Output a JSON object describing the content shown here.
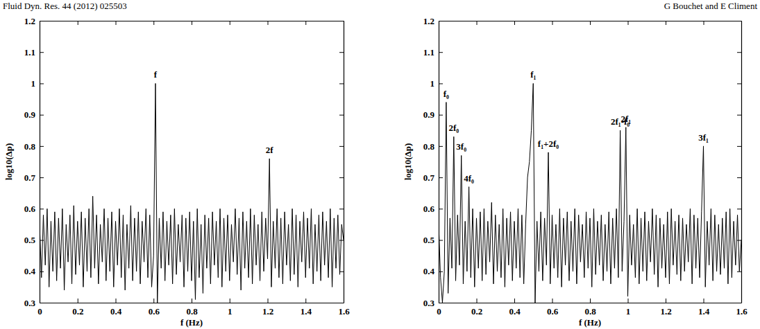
{
  "header": {
    "journal": "Fluid Dyn. Res. 44 (2012) 025503",
    "authors": "G Bouchet and E Climent"
  },
  "chart_data": [
    {
      "type": "line",
      "xlabel": "f (Hz)",
      "ylabel": "log10(Δp)",
      "color": "#000000",
      "xlim": [
        0,
        1.6
      ],
      "ylim": [
        0.3,
        1.2
      ],
      "xticks": [
        0,
        0.2,
        0.4,
        0.6,
        0.8,
        1,
        1.2,
        1.4,
        1.6
      ],
      "yticks": [
        0.3,
        0.4,
        0.5,
        0.6,
        0.7,
        0.8,
        0.9,
        1,
        1.1,
        1.2
      ],
      "x": [
        0,
        0.01,
        0.02,
        0.03,
        0.04,
        0.05,
        0.06,
        0.07,
        0.08,
        0.09,
        0.1,
        0.11,
        0.12,
        0.13,
        0.14,
        0.15,
        0.16,
        0.17,
        0.18,
        0.19,
        0.2,
        0.21,
        0.22,
        0.23,
        0.24,
        0.25,
        0.26,
        0.27,
        0.28,
        0.29,
        0.3,
        0.31,
        0.32,
        0.33,
        0.34,
        0.35,
        0.36,
        0.37,
        0.38,
        0.39,
        0.4,
        0.41,
        0.42,
        0.43,
        0.44,
        0.45,
        0.46,
        0.47,
        0.48,
        0.49,
        0.5,
        0.51,
        0.52,
        0.53,
        0.54,
        0.55,
        0.56,
        0.57,
        0.58,
        0.59,
        0.6,
        0.61,
        0.62,
        0.63,
        0.64,
        0.65,
        0.66,
        0.67,
        0.68,
        0.69,
        0.7,
        0.71,
        0.72,
        0.73,
        0.74,
        0.75,
        0.76,
        0.77,
        0.78,
        0.79,
        0.8,
        0.81,
        0.82,
        0.83,
        0.84,
        0.85,
        0.86,
        0.87,
        0.88,
        0.89,
        0.9,
        0.91,
        0.92,
        0.93,
        0.94,
        0.95,
        0.96,
        0.97,
        0.98,
        0.99,
        1,
        1.01,
        1.02,
        1.03,
        1.04,
        1.05,
        1.06,
        1.07,
        1.08,
        1.09,
        1.1,
        1.11,
        1.12,
        1.13,
        1.14,
        1.15,
        1.16,
        1.17,
        1.18,
        1.19,
        1.2,
        1.21,
        1.22,
        1.23,
        1.24,
        1.25,
        1.26,
        1.27,
        1.28,
        1.29,
        1.3,
        1.31,
        1.32,
        1.33,
        1.34,
        1.35,
        1.36,
        1.37,
        1.38,
        1.39,
        1.4,
        1.41,
        1.42,
        1.43,
        1.44,
        1.45,
        1.46,
        1.47,
        1.48,
        1.49,
        1.5,
        1.51,
        1.52,
        1.53,
        1.54,
        1.55,
        1.56,
        1.57,
        1.58,
        1.59,
        1.6
      ],
      "values": [
        0.55,
        0.38,
        0.58,
        0.42,
        0.6,
        0.35,
        0.56,
        0.4,
        0.59,
        0.37,
        0.57,
        0.41,
        0.6,
        0.34,
        0.55,
        0.43,
        0.58,
        0.36,
        0.61,
        0.39,
        0.56,
        0.42,
        0.59,
        0.35,
        0.57,
        0.4,
        0.6,
        0.38,
        0.64,
        0.41,
        0.58,
        0.36,
        0.55,
        0.43,
        0.6,
        0.37,
        0.57,
        0.4,
        0.59,
        0.35,
        0.56,
        0.42,
        0.6,
        0.38,
        0.58,
        0.34,
        0.55,
        0.41,
        0.61,
        0.37,
        0.57,
        0.4,
        0.59,
        0.36,
        0.56,
        0.43,
        0.6,
        0.38,
        0.58,
        0.35,
        0.45,
        1.0,
        0.3,
        0.57,
        0.41,
        0.59,
        0.37,
        0.56,
        0.42,
        0.58,
        0.36,
        0.6,
        0.39,
        0.55,
        0.43,
        0.58,
        0.35,
        0.57,
        0.4,
        0.59,
        0.37,
        0.56,
        0.31,
        0.6,
        0.38,
        0.55,
        0.33,
        0.58,
        0.41,
        0.57,
        0.36,
        0.59,
        0.42,
        0.56,
        0.38,
        0.6,
        0.35,
        0.57,
        0.4,
        0.58,
        0.37,
        0.55,
        0.43,
        0.6,
        0.39,
        0.57,
        0.34,
        0.59,
        0.41,
        0.56,
        0.38,
        0.6,
        0.36,
        0.58,
        0.42,
        0.55,
        0.37,
        0.59,
        0.4,
        0.57,
        0.44,
        0.76,
        0.35,
        0.56,
        0.41,
        0.6,
        0.38,
        0.57,
        0.36,
        0.59,
        0.42,
        0.55,
        0.37,
        0.6,
        0.39,
        0.58,
        0.35,
        0.56,
        0.43,
        0.59,
        0.38,
        0.57,
        0.41,
        0.6,
        0.36,
        0.55,
        0.4,
        0.58,
        0.37,
        0.59,
        0.42,
        0.56,
        0.38,
        0.6,
        0.35,
        0.57,
        0.41,
        0.58,
        0.39,
        0.55,
        0.5
      ],
      "annotations": [
        {
          "text": "f",
          "x": 0.61,
          "y": 1.0
        },
        {
          "text": "2f",
          "x": 1.21,
          "y": 0.76
        }
      ]
    },
    {
      "type": "line",
      "xlabel": "f (Hz)",
      "ylabel": "log10(Δp)",
      "color": "#000000",
      "xlim": [
        0,
        1.6
      ],
      "ylim": [
        0.3,
        1.2
      ],
      "xticks": [
        0,
        0.2,
        0.4,
        0.6,
        0.8,
        1,
        1.2,
        1.4,
        1.6
      ],
      "yticks": [
        0.3,
        0.4,
        0.5,
        0.6,
        0.7,
        0.8,
        0.9,
        1,
        1.1,
        1.2
      ],
      "x": [
        0,
        0.01,
        0.02,
        0.03,
        0.04,
        0.05,
        0.06,
        0.07,
        0.08,
        0.09,
        0.1,
        0.11,
        0.12,
        0.13,
        0.14,
        0.15,
        0.16,
        0.17,
        0.18,
        0.19,
        0.2,
        0.21,
        0.22,
        0.23,
        0.24,
        0.25,
        0.26,
        0.27,
        0.28,
        0.29,
        0.3,
        0.31,
        0.32,
        0.33,
        0.34,
        0.35,
        0.36,
        0.37,
        0.38,
        0.39,
        0.4,
        0.41,
        0.42,
        0.43,
        0.44,
        0.45,
        0.46,
        0.47,
        0.48,
        0.49,
        0.5,
        0.51,
        0.52,
        0.53,
        0.54,
        0.55,
        0.56,
        0.57,
        0.58,
        0.59,
        0.6,
        0.61,
        0.62,
        0.63,
        0.64,
        0.65,
        0.66,
        0.67,
        0.68,
        0.69,
        0.7,
        0.71,
        0.72,
        0.73,
        0.74,
        0.75,
        0.76,
        0.77,
        0.78,
        0.79,
        0.8,
        0.81,
        0.82,
        0.83,
        0.84,
        0.85,
        0.86,
        0.87,
        0.88,
        0.89,
        0.9,
        0.91,
        0.92,
        0.93,
        0.94,
        0.95,
        0.96,
        0.97,
        0.98,
        0.99,
        1,
        1.01,
        1.02,
        1.03,
        1.04,
        1.05,
        1.06,
        1.07,
        1.08,
        1.09,
        1.1,
        1.11,
        1.12,
        1.13,
        1.14,
        1.15,
        1.16,
        1.17,
        1.18,
        1.19,
        1.2,
        1.21,
        1.22,
        1.23,
        1.24,
        1.25,
        1.26,
        1.27,
        1.28,
        1.29,
        1.3,
        1.31,
        1.32,
        1.33,
        1.34,
        1.35,
        1.36,
        1.37,
        1.38,
        1.39,
        1.4,
        1.41,
        1.42,
        1.43,
        1.44,
        1.45,
        1.46,
        1.47,
        1.48,
        1.49,
        1.5,
        1.51,
        1.52,
        1.53,
        1.54,
        1.55,
        1.56,
        1.57,
        1.58,
        1.59,
        1.6
      ],
      "values": [
        0.55,
        0.38,
        0.3,
        0.4,
        0.94,
        0.33,
        0.57,
        0.41,
        0.83,
        0.37,
        0.58,
        0.42,
        0.77,
        0.36,
        0.56,
        0.4,
        0.67,
        0.38,
        0.6,
        0.35,
        0.57,
        0.41,
        0.59,
        0.37,
        0.6,
        0.39,
        0.56,
        0.43,
        0.62,
        0.36,
        0.58,
        0.4,
        0.55,
        0.38,
        0.6,
        0.35,
        0.57,
        0.42,
        0.59,
        0.37,
        0.56,
        0.41,
        0.6,
        0.38,
        0.58,
        0.36,
        0.55,
        0.7,
        0.75,
        0.85,
        1.0,
        0.3,
        0.56,
        0.4,
        0.59,
        0.37,
        0.57,
        0.42,
        0.78,
        0.36,
        0.58,
        0.41,
        0.55,
        0.38,
        0.6,
        0.35,
        0.57,
        0.42,
        0.59,
        0.37,
        0.56,
        0.4,
        0.6,
        0.36,
        0.58,
        0.43,
        0.55,
        0.38,
        0.59,
        0.41,
        0.57,
        0.35,
        0.6,
        0.39,
        0.56,
        0.42,
        0.58,
        0.37,
        0.55,
        0.4,
        0.59,
        0.36,
        0.57,
        0.41,
        0.6,
        0.38,
        0.85,
        0.4,
        0.56,
        0.86,
        0.32,
        0.58,
        0.42,
        0.55,
        0.38,
        0.6,
        0.36,
        0.57,
        0.4,
        0.59,
        0.37,
        0.56,
        0.43,
        0.6,
        0.39,
        0.58,
        0.35,
        0.57,
        0.41,
        0.55,
        0.38,
        0.59,
        0.36,
        0.6,
        0.42,
        0.56,
        0.39,
        0.58,
        0.37,
        0.57,
        0.4,
        0.55,
        0.43,
        0.6,
        0.36,
        0.58,
        0.41,
        0.57,
        0.38,
        0.59,
        0.8,
        0.35,
        0.56,
        0.42,
        0.6,
        0.37,
        0.58,
        0.4,
        0.55,
        0.39,
        0.57,
        0.41,
        0.59,
        0.36,
        0.6,
        0.38,
        0.56,
        0.42,
        0.58,
        0.4,
        0.5
      ],
      "annotations": [
        {
          "text": "f₀",
          "x": 0.04,
          "y": 0.94
        },
        {
          "text": "2f₀",
          "x": 0.08,
          "y": 0.83
        },
        {
          "text": "3f₀",
          "x": 0.12,
          "y": 0.77
        },
        {
          "text": "4f₀",
          "x": 0.16,
          "y": 0.67
        },
        {
          "text": "f₁",
          "x": 0.5,
          "y": 1.0
        },
        {
          "text": "f₁+2f₀",
          "x": 0.58,
          "y": 0.78
        },
        {
          "text": "2f₁-f₀",
          "x": 0.96,
          "y": 0.85
        },
        {
          "text": "2f₁",
          "x": 0.99,
          "y": 0.86
        },
        {
          "text": "3f₁",
          "x": 1.4,
          "y": 0.8
        }
      ]
    }
  ]
}
